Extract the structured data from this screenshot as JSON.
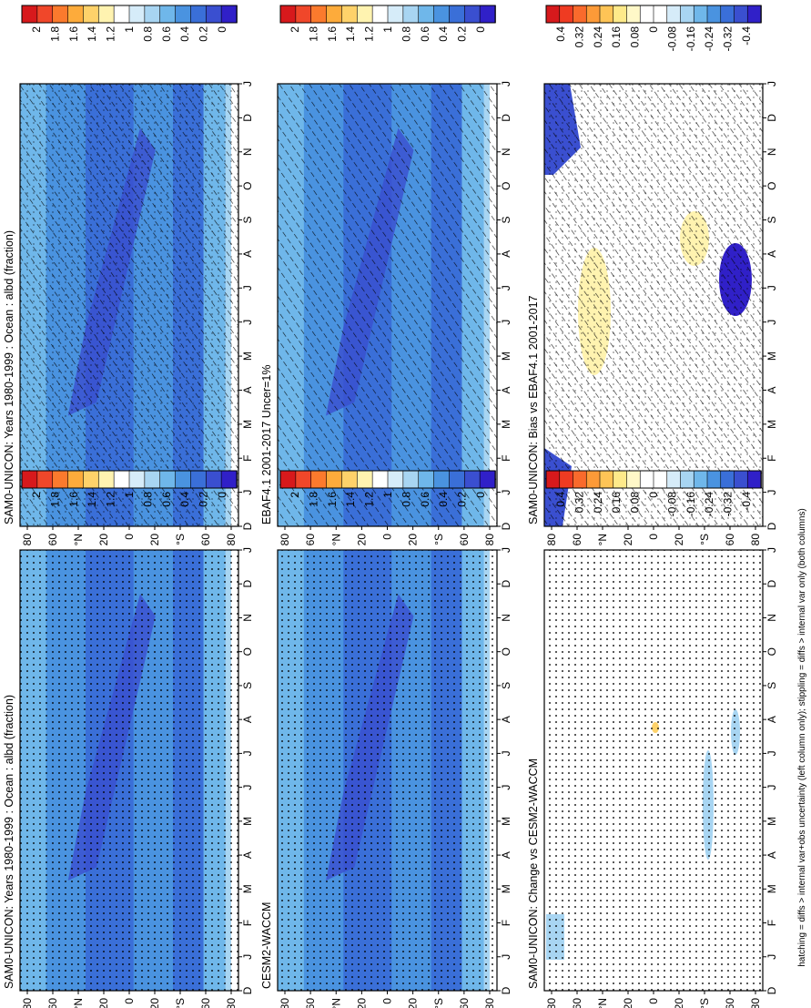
{
  "figure": {
    "footnote": "hatching = diffs > internal var+obs uncertainty (left column only); stippling = diffs > internal var only (both columns)"
  },
  "colorbars": {
    "abs_ticks": [
      "2",
      "1.8",
      "1.6",
      "1.4",
      "1.2",
      "1",
      "0.8",
      "0.6",
      "0.4",
      "0.2",
      "0"
    ],
    "abs_colors": [
      "#d7191c",
      "#f0472a",
      "#fb7a2d",
      "#fdab3b",
      "#fed26a",
      "#fff3b0",
      "#ffffff",
      "#d6ecf9",
      "#a8d5f2",
      "#6fb7ea",
      "#4a93e0",
      "#3a6fd8",
      "#3a4fd0",
      "#3020c8"
    ],
    "diff_ticks": [
      "0.4",
      "0.32",
      "0.24",
      "0.16",
      "0.08",
      "0",
      "-0.08",
      "-0.16",
      "-0.24",
      "-0.32",
      "-0.4"
    ],
    "diff_colors": [
      "#d7191c",
      "#ef3b22",
      "#f96a2c",
      "#fd9a38",
      "#fec456",
      "#feea8a",
      "#fff8c8",
      "#ffffff",
      "#ffffff",
      "#d6ecf9",
      "#a8d5f2",
      "#6fb7ea",
      "#4a93e0",
      "#3a6fd8",
      "#3a4fd0",
      "#3020c8"
    ]
  },
  "axes": {
    "months": [
      "D",
      "J",
      "F",
      "M",
      "A",
      "M",
      "J",
      "J",
      "A",
      "S",
      "O",
      "N",
      "D",
      "J"
    ],
    "lat_labels": [
      "80",
      "60",
      "°N",
      "20",
      "0",
      "20",
      "°S",
      "60",
      "80"
    ]
  },
  "chart_data": [
    {
      "type": "heatmap",
      "title": "SAM0-UNICON: Years 1980-1999 : Ocean : albd (fraction)",
      "x": "month",
      "y": "latitude",
      "ylim": [
        -90,
        90
      ],
      "colorbar": "abs",
      "hatching": true,
      "stippling": true
    },
    {
      "type": "heatmap",
      "title": "EBAF4.1 2001-2017 Uncer=1%",
      "x": "month",
      "y": "latitude",
      "ylim": [
        -90,
        90
      ],
      "colorbar": "abs",
      "hatching": true,
      "stippling": false
    },
    {
      "type": "heatmap",
      "title": "SAM0-UNICON: Bias vs EBAF4.1 2001-2017",
      "x": "month",
      "y": "latitude",
      "ylim": [
        -90,
        90
      ],
      "colorbar": "diff",
      "hatching": true,
      "stippling": true
    },
    {
      "type": "heatmap",
      "title": "SAM0-UNICON: Years 1980-1999 : Ocean : albd (fraction)",
      "x": "month",
      "y": "latitude",
      "ylim": [
        -90,
        90
      ],
      "colorbar": "abs",
      "hatching": false,
      "stippling": true
    },
    {
      "type": "heatmap",
      "title": "CESM2-WACCM",
      "x": "month",
      "y": "latitude",
      "ylim": [
        -90,
        90
      ],
      "colorbar": "abs",
      "hatching": false,
      "stippling": true
    },
    {
      "type": "heatmap",
      "title": "SAM0-UNICON: Change vs CESM2-WACCM",
      "x": "month",
      "y": "latitude",
      "ylim": [
        -90,
        90
      ],
      "colorbar": "diff",
      "hatching": false,
      "stippling": true
    }
  ]
}
